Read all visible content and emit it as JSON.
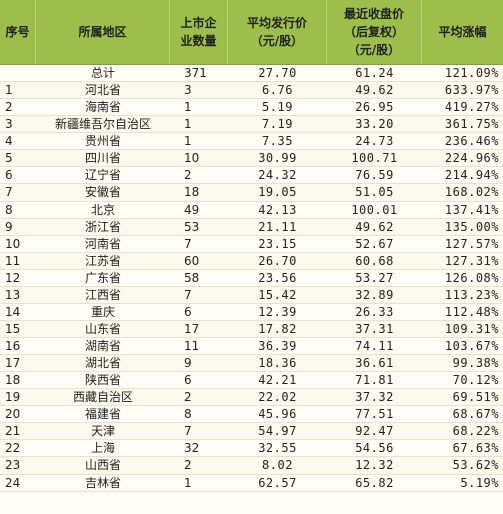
{
  "headers": [
    "序号",
    "所属地区",
    "上市企\n业数量",
    "平均发行价\n（元/股）",
    "最近收盘价\n（后复权）\n（元/股）",
    "平均涨幅"
  ],
  "rows": [
    [
      "",
      "总计",
      "371",
      "27.70",
      "61.24",
      "121.09%"
    ],
    [
      "1",
      "河北省",
      "3",
      "6.76",
      "49.62",
      "633.97%"
    ],
    [
      "2",
      "海南省",
      "1",
      "5.19",
      "26.95",
      "419.27%"
    ],
    [
      "3",
      "新疆维吾尔自治区",
      "1",
      "7.19",
      "33.20",
      "361.75%"
    ],
    [
      "4",
      "贵州省",
      "1",
      "7.35",
      "24.73",
      "236.46%"
    ],
    [
      "5",
      "四川省",
      "10",
      "30.99",
      "100.71",
      "224.96%"
    ],
    [
      "6",
      "辽宁省",
      "2",
      "24.32",
      "76.59",
      "214.94%"
    ],
    [
      "7",
      "安徽省",
      "18",
      "19.05",
      "51.05",
      "168.02%"
    ],
    [
      "8",
      "北京",
      "49",
      "42.13",
      "100.01",
      "137.41%"
    ],
    [
      "9",
      "浙江省",
      "53",
      "21.11",
      "49.62",
      "135.00%"
    ],
    [
      "10",
      "河南省",
      "7",
      "23.15",
      "52.67",
      "127.57%"
    ],
    [
      "11",
      "江苏省",
      "60",
      "26.70",
      "60.68",
      "127.31%"
    ],
    [
      "12",
      "广东省",
      "58",
      "23.56",
      "53.27",
      "126.08%"
    ],
    [
      "13",
      "江西省",
      "7",
      "15.42",
      "32.89",
      "113.23%"
    ],
    [
      "14",
      "重庆",
      "6",
      "12.39",
      "26.33",
      "112.48%"
    ],
    [
      "15",
      "山东省",
      "17",
      "17.82",
      "37.31",
      "109.31%"
    ],
    [
      "16",
      "湖南省",
      "11",
      "36.39",
      "74.11",
      "103.67%"
    ],
    [
      "17",
      "湖北省",
      "9",
      "18.36",
      "36.61",
      "99.38%"
    ],
    [
      "18",
      "陕西省",
      "6",
      "42.21",
      "71.81",
      "70.12%"
    ],
    [
      "19",
      "西藏自治区",
      "2",
      "22.02",
      "37.32",
      "69.51%"
    ],
    [
      "20",
      "福建省",
      "8",
      "45.96",
      "77.51",
      "68.67%"
    ],
    [
      "21",
      "天津",
      "7",
      "54.97",
      "92.47",
      "68.22%"
    ],
    [
      "22",
      "上海",
      "32",
      "32.55",
      "54.56",
      "67.63%"
    ],
    [
      "23",
      "山西省",
      "2",
      "8.02",
      "12.32",
      "53.62%"
    ],
    [
      "24",
      "吉林省",
      "1",
      "62.57",
      "65.82",
      "5.19%"
    ]
  ]
}
